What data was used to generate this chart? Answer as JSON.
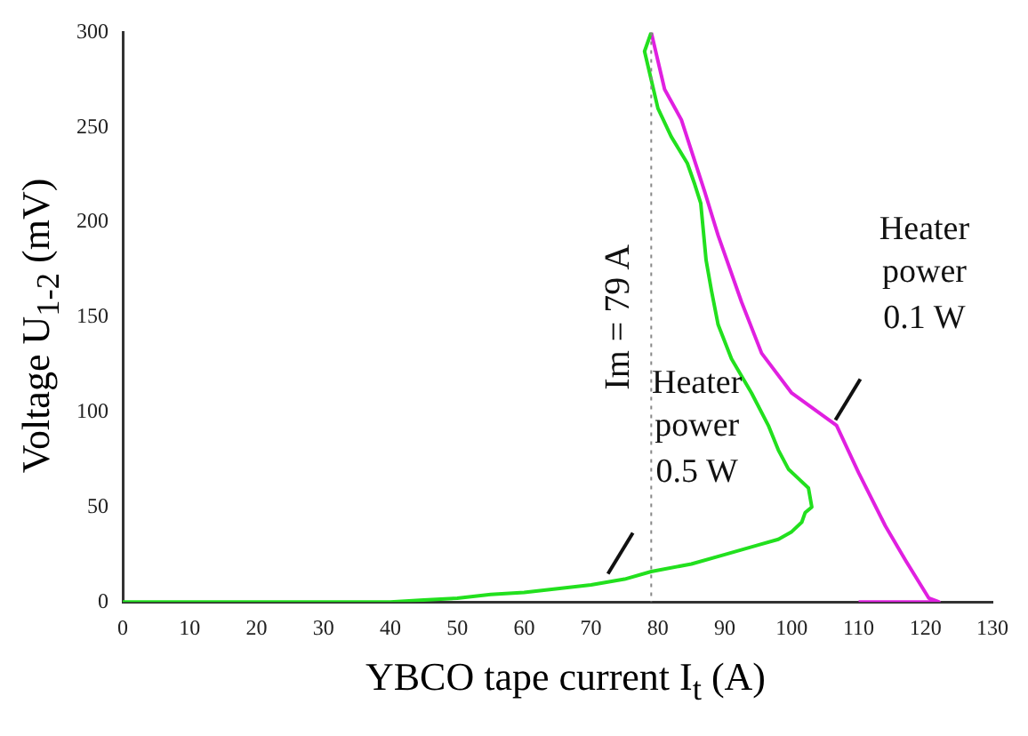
{
  "chart_data": {
    "type": "line",
    "xlabel": "YBCO tape current I$_{t}$ (A)",
    "ylabel": "Voltage U$_{1-2}$ (mV)",
    "xlim": [
      0,
      130
    ],
    "xticks": [
      0,
      10,
      20,
      30,
      40,
      50,
      60,
      70,
      80,
      90,
      100,
      110,
      120,
      130
    ],
    "ylim": [
      0,
      300
    ],
    "yticks": [
      0,
      50,
      100,
      150,
      200,
      250,
      300
    ],
    "grid": false,
    "legend": false,
    "marker": "none",
    "line_style": "solid",
    "series": [
      {
        "color": "#22e01e",
        "x": [
          0,
          20,
          40,
          45,
          50,
          55,
          60,
          65,
          70,
          75,
          79,
          85,
          90,
          95,
          98,
          100,
          101.5,
          102,
          103,
          102.5,
          101,
          99.5,
          98,
          96.5,
          94,
          91,
          89,
          88,
          87.2,
          86.8,
          86.4,
          85.5,
          84.4,
          82,
          80,
          79,
          78,
          79
        ],
        "values": [
          0,
          0,
          0,
          1,
          2,
          4,
          5,
          7,
          9,
          12,
          16,
          20,
          25,
          30,
          33,
          37,
          42,
          47,
          50,
          60,
          65,
          70,
          80,
          93,
          110,
          128,
          146,
          164,
          180,
          195,
          210,
          220,
          231,
          245,
          260,
          275,
          290,
          300
        ]
      },
      {
        "color": "#e020e0",
        "x": [
          79,
          80,
          81,
          83.5,
          87,
          89,
          92.5,
          95.5,
          100,
          106.7,
          110,
          114,
          117,
          120.5,
          122,
          115,
          110
        ],
        "values": [
          300,
          285,
          270,
          254,
          216,
          193,
          158,
          131,
          110,
          93,
          68,
          40,
          22,
          2,
          0,
          0,
          0
        ]
      }
    ],
    "ref_lines": [
      {
        "axis": "x",
        "value": 79,
        "label": "Im = 79 A",
        "color": "#888888",
        "line_style": "dotted"
      }
    ],
    "annotations": [
      {
        "text": "Heater power 0.5 W",
        "x": 72,
        "y": 12
      },
      {
        "text": "Heater power 0.1 W",
        "x": 106,
        "y": 93
      }
    ]
  }
}
